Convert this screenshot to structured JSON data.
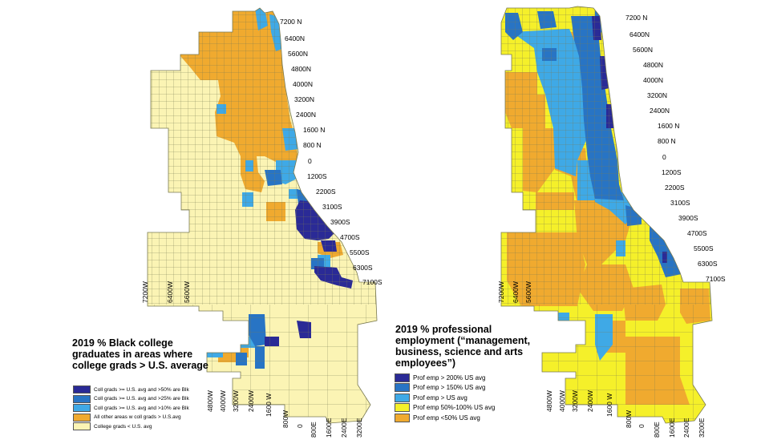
{
  "colors": {
    "background": "#ffffff",
    "tract_border": "#7a7a52",
    "left_pale": "#fbf4b4",
    "left_orange": "#f0aa2f",
    "left_light_blue": "#3fa9e6",
    "left_mid_blue": "#2874c4",
    "left_dark_blue": "#2a2a96",
    "right_yellow": "#f5f02a",
    "right_orange": "#f0aa2f",
    "right_light_blue": "#3fa9e6",
    "right_mid_blue": "#2874c4",
    "right_dark_blue": "#2a2a96"
  },
  "left_map": {
    "legend_title": "2019 % Black college graduates in areas where college grads > U.S. average",
    "legend": [
      {
        "label": "Coll grads >= U.S. avg and >50% are Blk",
        "color": "#2a2a96"
      },
      {
        "label": "Coll grads >= U.S. avg and >25% are Blk",
        "color": "#2874c4"
      },
      {
        "label": "Coll grads >= U.S. avg and >10% are Blk",
        "color": "#3fa9e6"
      },
      {
        "label": "All other areas w coll grads > U.S.avg",
        "color": "#f0aa2f"
      },
      {
        "label": "College grads < U.S. avg",
        "color": "#fbf4b4"
      }
    ],
    "ns_labels": [
      "7200 N",
      "6400N",
      "5600N",
      "4800N",
      "4000N",
      "3200N",
      "2400N",
      "1600 N",
      "800 N",
      "0",
      "1200S",
      "2200S",
      "3100S",
      "3900S",
      "4700S",
      "5500S",
      "6300S",
      "7100S"
    ],
    "ew_labels_west": [
      "7200W",
      "6400W",
      "5600W"
    ],
    "ew_labels_south": [
      "4800W",
      "4000W",
      "3200W",
      "2400W",
      "1600 W",
      "800W",
      "0",
      "800E",
      "1600E",
      "2400E",
      "3200E"
    ]
  },
  "right_map": {
    "legend_title": "2019 % professional employment (“management, business, science and arts employees”)",
    "legend": [
      {
        "label": "Prof emp > 200% US avg",
        "color": "#2a2a96"
      },
      {
        "label": "Prof emp > 150% US avg",
        "color": "#2874c4"
      },
      {
        "label": "Prof emp > US avg",
        "color": "#3fa9e6"
      },
      {
        "label": "Prof emp 50%-100% US avg",
        "color": "#f5f02a"
      },
      {
        "label": "Prof emp <50% US avg",
        "color": "#f0aa2f"
      }
    ],
    "ns_labels": [
      "7200 N",
      "6400N",
      "5600N",
      "4800N",
      "4000N",
      "3200N",
      "2400N",
      "1600 N",
      "800 N",
      "0",
      "1200S",
      "2200S",
      "3100S",
      "3900S",
      "4700S",
      "5500S",
      "6300S",
      "7100S"
    ],
    "ew_labels_west": [
      "7200W",
      "6400W",
      "5600W"
    ],
    "ew_labels_south": [
      "4800W",
      "4000W",
      "3200W",
      "2400W",
      "1600 W",
      "800W",
      "0",
      "800E",
      "1600E",
      "2400E",
      "3200E"
    ]
  }
}
